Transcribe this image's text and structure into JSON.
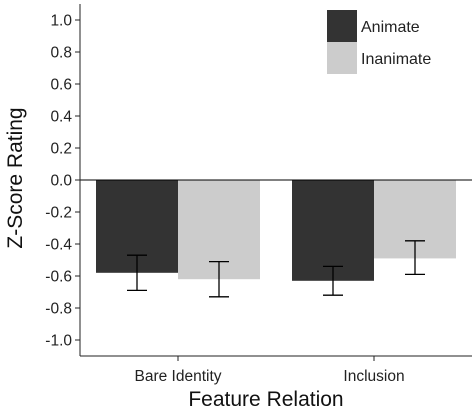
{
  "chart_data": {
    "type": "bar",
    "xlabel": "Feature Relation",
    "ylabel": "Z-Score Rating",
    "ylim": [
      -1.1,
      1.1
    ],
    "yticks": [
      -1.0,
      -0.8,
      -0.6,
      -0.4,
      -0.2,
      0.0,
      0.2,
      0.4,
      0.6,
      0.8,
      1.0
    ],
    "ytick_labels": [
      "-1.0",
      "-0.8",
      "-0.6",
      "-0.4",
      "-0.2",
      "0.0",
      "0.2",
      "0.4",
      "0.6",
      "0.8",
      "1.0"
    ],
    "categories": [
      "Bare Identity",
      "Inclusion"
    ],
    "series": [
      {
        "name": "Animate",
        "color": "#333333",
        "values": [
          -0.58,
          -0.63
        ],
        "error_low": [
          -0.69,
          -0.72
        ],
        "error_high": [
          -0.47,
          -0.54
        ]
      },
      {
        "name": "Inanimate",
        "color": "#cccccc",
        "values": [
          -0.62,
          -0.49
        ],
        "error_low": [
          -0.73,
          -0.59
        ],
        "error_high": [
          -0.51,
          -0.38
        ]
      }
    ],
    "zero_line": true,
    "grid": false,
    "legend_position": "top-right"
  }
}
